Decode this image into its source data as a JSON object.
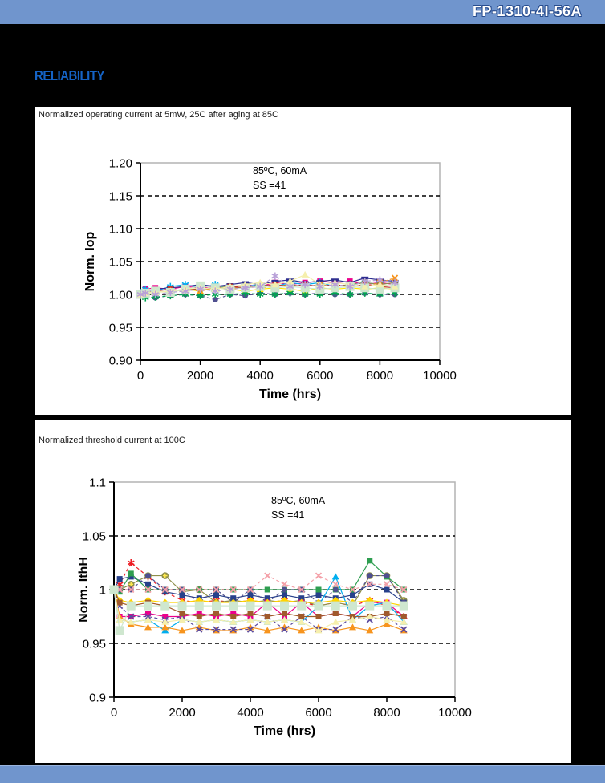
{
  "page": {
    "header_title": "FP-1310-4I-56A",
    "section_title": "RELIABILITY"
  },
  "colors": {
    "header_bar": "#7095cd",
    "footer_bar": "#7095cd",
    "section_title_blue": "#1563c5",
    "page_background": "#000000",
    "panel_background": "#ffffff"
  },
  "chart_data": [
    {
      "type": "line",
      "title": "Normalized operating current at 5mW, 25C after aging at 85C",
      "xlabel": "Time (hrs)",
      "ylabel": "Norm. Iop",
      "annotation": [
        "85ºC, 60mA",
        "SS =41"
      ],
      "legend": "none",
      "grid": "dashed horizontal",
      "xlim": [
        0,
        10000
      ],
      "xticks": [
        0,
        2000,
        4000,
        6000,
        8000,
        10000
      ],
      "ylim": [
        0.9,
        1.2
      ],
      "yticks": [
        {
          "v": 1.2,
          "label": "1.20",
          "grid": false
        },
        {
          "v": 1.15,
          "label": "1.15",
          "grid": true
        },
        {
          "v": 1.1,
          "label": "1.10",
          "grid": true
        },
        {
          "v": 1.05,
          "label": "1.05",
          "grid": true
        },
        {
          "v": 1.0,
          "label": "1.00",
          "grid": true
        },
        {
          "v": 0.95,
          "label": "0.95",
          "grid": true
        },
        {
          "v": 0.9,
          "label": "0.90",
          "grid": false
        }
      ],
      "x": [
        0,
        168,
        500,
        1000,
        1500,
        2000,
        2500,
        3000,
        3500,
        4000,
        4500,
        5000,
        5500,
        6000,
        6500,
        7000,
        7500,
        8000,
        8500
      ],
      "series": [
        {
          "marker": "square",
          "color": "#ec008c",
          "line": "solid",
          "values": [
            1.002,
            1.008,
            1.01,
            1.008,
            1.012,
            1.01,
            1.012,
            1.01,
            1.015,
            1.012,
            1.018,
            1.015,
            1.018,
            1.02,
            1.018,
            1.02,
            1.015,
            1.018,
            1.015
          ]
        },
        {
          "marker": "circle",
          "color": "#4f4f8f",
          "line": "dash",
          "values": [
            1.0,
            0.997,
            0.995,
            0.998,
            1.0,
            0.998,
            0.992,
            1.0,
            0.998,
            1.002,
            1.0,
            1.002,
            1.0,
            1.002,
            1.0,
            1.0,
            1.002,
            1.0,
            1.0
          ]
        },
        {
          "marker": "star",
          "color": "#00aeef",
          "line": "solid",
          "values": [
            1.003,
            1.008,
            1.005,
            1.012,
            1.015,
            1.01,
            1.015,
            1.008,
            1.012,
            1.015,
            1.012,
            1.018,
            1.015,
            1.018,
            1.012,
            1.015,
            1.018,
            1.015,
            1.012
          ]
        },
        {
          "marker": "triangle",
          "color": "#ffe600",
          "line": "solid",
          "values": [
            1.0,
            1.003,
            1.005,
            1.003,
            1.008,
            1.005,
            1.01,
            1.008,
            1.005,
            1.008,
            1.01,
            1.008,
            1.005,
            1.01,
            1.008,
            1.01,
            1.008,
            1.01,
            1.008
          ]
        },
        {
          "marker": "circleplus",
          "color": "#8f8f4a",
          "line": "solid",
          "values": [
            1.001,
            1.002,
            1.003,
            1.005,
            1.008,
            1.008,
            1.01,
            1.012,
            1.01,
            1.015,
            1.012,
            1.015,
            1.012,
            1.015,
            1.012,
            1.015,
            1.018,
            1.015,
            1.018
          ]
        },
        {
          "marker": "star",
          "color": "#00a550",
          "line": "dash",
          "values": [
            0.998,
            0.995,
            0.996,
            0.998,
            1.0,
            0.998,
            1.0,
            1.0,
            1.002,
            1.0,
            1.0,
            1.002,
            1.0,
            1.0,
            1.002,
            1.0,
            1.002,
            1.0,
            1.002
          ]
        },
        {
          "marker": "dash",
          "color": "#2d2d8f",
          "line": "solid",
          "values": [
            1.002,
            1.005,
            1.008,
            1.01,
            1.012,
            1.015,
            1.012,
            1.015,
            1.018,
            1.015,
            1.02,
            1.022,
            1.018,
            1.02,
            1.022,
            1.018,
            1.025,
            1.022,
            1.02
          ]
        },
        {
          "marker": "x",
          "color": "#f7941d",
          "line": "dash",
          "values": [
            1.0,
            1.002,
            1.005,
            1.003,
            1.008,
            1.005,
            1.01,
            1.008,
            1.012,
            1.01,
            1.012,
            1.015,
            1.012,
            1.015,
            1.012,
            1.015,
            1.012,
            1.018,
            1.025
          ]
        },
        {
          "marker": "square",
          "color": "#c0392b",
          "line": "solid",
          "values": [
            1.001,
            1.003,
            1.005,
            1.008,
            1.005,
            1.01,
            1.008,
            1.012,
            1.01,
            1.012,
            1.015,
            1.012,
            1.015,
            1.012,
            1.015,
            1.012,
            1.015,
            1.012,
            1.01
          ]
        },
        {
          "marker": "bigsquare",
          "color": "#cde6cd",
          "line": "solid",
          "values": [
            1.0,
            1.002,
            1.005,
            1.003,
            1.008,
            1.013,
            1.01,
            1.008,
            1.01,
            1.012,
            1.01,
            1.012,
            1.01,
            1.008,
            1.01,
            1.012,
            1.01,
            1.008,
            1.01
          ]
        },
        {
          "marker": "triangle",
          "color": "#f5efad",
          "line": "solid",
          "values": [
            1.0,
            1.002,
            1.003,
            1.005,
            1.008,
            1.01,
            1.008,
            1.012,
            1.015,
            1.018,
            1.015,
            1.02,
            1.03,
            1.015,
            1.018,
            1.015,
            1.012,
            1.015,
            1.012
          ]
        },
        {
          "marker": "star",
          "color": "#b8a0d8",
          "line": "dash",
          "values": [
            1.0,
            1.002,
            1.0,
            1.003,
            1.005,
            1.008,
            1.005,
            1.008,
            1.01,
            1.012,
            1.028,
            1.012,
            1.015,
            1.012,
            1.015,
            1.012,
            1.02,
            1.022,
            1.018
          ]
        }
      ]
    },
    {
      "type": "line",
      "title": "Normalized threshold current at 100C",
      "xlabel": "Time (hrs)",
      "ylabel": "Norm. IthH",
      "annotation": [
        "85ºC, 60mA",
        "SS =41"
      ],
      "legend": "none",
      "grid": "dashed horizontal",
      "xlim": [
        0,
        10000
      ],
      "xticks": [
        0,
        2000,
        4000,
        6000,
        8000,
        10000
      ],
      "ylim": [
        0.9,
        1.1
      ],
      "yticks": [
        {
          "v": 1.1,
          "label": "1.1",
          "grid": false
        },
        {
          "v": 1.05,
          "label": "1.05",
          "grid": true
        },
        {
          "v": 1.0,
          "label": "1",
          "grid": true
        },
        {
          "v": 0.95,
          "label": "0.95",
          "grid": true
        },
        {
          "v": 0.9,
          "label": "0.9",
          "grid": false
        }
      ],
      "x": [
        0,
        168,
        500,
        1000,
        1500,
        2000,
        2500,
        3000,
        3500,
        4000,
        4500,
        5000,
        5500,
        6000,
        6500,
        7000,
        7500,
        8000,
        8500
      ],
      "series": [
        {
          "marker": "star",
          "color": "#ed1c24",
          "line": "dash",
          "values": [
            1.0,
            1.005,
            1.025,
            1.012,
            0.998,
            0.99,
            0.988,
            0.99,
            0.988,
            0.99,
            0.988,
            0.99,
            0.988,
            0.985,
            0.988,
            0.985,
            0.99,
            0.985,
            0.975
          ]
        },
        {
          "marker": "circleplus",
          "color": "#8f8f4a",
          "line": "solid",
          "values": [
            1.0,
            1.0,
            1.005,
            1.013,
            1.013,
            0.998,
            1.0,
            0.988,
            0.99,
            0.988,
            0.99,
            0.988,
            0.99,
            0.985,
            0.988,
            0.985,
            1.013,
            1.013,
            0.99
          ]
        },
        {
          "marker": "square",
          "color": "#27408b",
          "line": "solid",
          "values": [
            1.0,
            1.01,
            1.012,
            1.005,
            0.998,
            0.995,
            0.992,
            0.995,
            0.992,
            0.995,
            0.992,
            0.995,
            0.992,
            0.995,
            0.992,
            0.995,
            1.005,
            1.0,
            0.988
          ]
        },
        {
          "marker": "square",
          "color": "#2e9e50",
          "line": "solid",
          "values": [
            1.0,
            0.998,
            1.015,
            1.0,
            1.0,
            1.0,
            1.0,
            1.0,
            1.0,
            1.0,
            1.0,
            1.0,
            1.0,
            1.0,
            1.0,
            1.0,
            1.027,
            1.012,
            1.0
          ]
        },
        {
          "marker": "circle",
          "color": "#4f4f8f",
          "line": "dash",
          "values": [
            1.0,
            1.0,
            1.0,
            1.013,
            1.0,
            1.0,
            0.988,
            1.0,
            0.988,
            1.0,
            0.988,
            1.0,
            1.0,
            0.988,
            1.0,
            0.988,
            1.013,
            1.013,
            0.988
          ]
        },
        {
          "marker": "square",
          "color": "#ec008c",
          "line": "solid",
          "values": [
            1.0,
            0.975,
            0.975,
            0.978,
            0.975,
            0.975,
            0.978,
            0.975,
            0.978,
            0.975,
            0.988,
            0.975,
            0.988,
            0.975,
            0.978,
            0.975,
            0.988,
            0.988,
            0.975
          ]
        },
        {
          "marker": "triangle",
          "color": "#00aeef",
          "line": "solid",
          "values": [
            1.0,
            0.972,
            0.97,
            0.972,
            0.962,
            0.972,
            0.97,
            0.972,
            0.97,
            0.972,
            0.97,
            0.972,
            0.97,
            0.985,
            1.012,
            0.972,
            0.985,
            0.988,
            0.97
          ]
        },
        {
          "marker": "triangle",
          "color": "#f7941d",
          "line": "solid",
          "values": [
            1.0,
            0.975,
            0.968,
            0.965,
            0.965,
            0.962,
            0.965,
            0.962,
            0.962,
            0.965,
            0.962,
            0.965,
            0.962,
            0.965,
            0.962,
            0.965,
            0.962,
            0.968,
            0.962
          ]
        },
        {
          "marker": "diamond",
          "color": "#ffd400",
          "line": "solid",
          "values": [
            1.0,
            0.99,
            0.988,
            0.99,
            0.988,
            0.988,
            0.99,
            0.988,
            0.988,
            0.99,
            0.988,
            0.99,
            0.988,
            0.988,
            0.99,
            0.988,
            0.99,
            0.988,
            0.985
          ]
        },
        {
          "marker": "x",
          "color": "#f4a0a8",
          "line": "dash",
          "values": [
            1.0,
            1.0,
            1.0,
            1.0,
            1.0,
            1.0,
            1.0,
            1.0,
            1.0,
            1.0,
            1.013,
            1.005,
            1.0,
            1.013,
            1.005,
            1.0,
            1.005,
            1.005,
            1.0
          ]
        },
        {
          "marker": "x",
          "color": "#5b4a9e",
          "line": "dash",
          "values": [
            1.0,
            0.985,
            0.975,
            0.975,
            0.972,
            0.975,
            0.963,
            0.963,
            0.963,
            0.963,
            0.975,
            0.963,
            0.975,
            0.963,
            0.963,
            0.975,
            0.972,
            0.975,
            0.963
          ]
        },
        {
          "marker": "square",
          "color": "#a05a2c",
          "line": "solid",
          "values": [
            1.0,
            0.988,
            0.985,
            0.988,
            0.985,
            0.978,
            0.975,
            0.978,
            0.975,
            0.978,
            0.975,
            0.978,
            0.975,
            0.975,
            0.978,
            0.975,
            0.975,
            0.978,
            0.975
          ]
        },
        {
          "marker": "triangle",
          "color": "#f5efad",
          "line": "solid",
          "values": [
            1.0,
            0.972,
            0.97,
            0.972,
            0.97,
            0.972,
            0.97,
            0.972,
            0.97,
            0.972,
            0.97,
            0.972,
            0.97,
            0.962,
            0.97,
            0.972,
            0.975,
            0.972,
            0.97
          ]
        },
        {
          "marker": "bigsquare",
          "color": "#cfe7cf",
          "line": "solid",
          "values": [
            1.0,
            0.962,
            0.985,
            0.985,
            0.985,
            0.985,
            0.985,
            0.985,
            0.985,
            0.985,
            0.985,
            0.985,
            0.985,
            0.985,
            0.985,
            0.985,
            0.985,
            0.985,
            0.985
          ]
        }
      ]
    }
  ]
}
